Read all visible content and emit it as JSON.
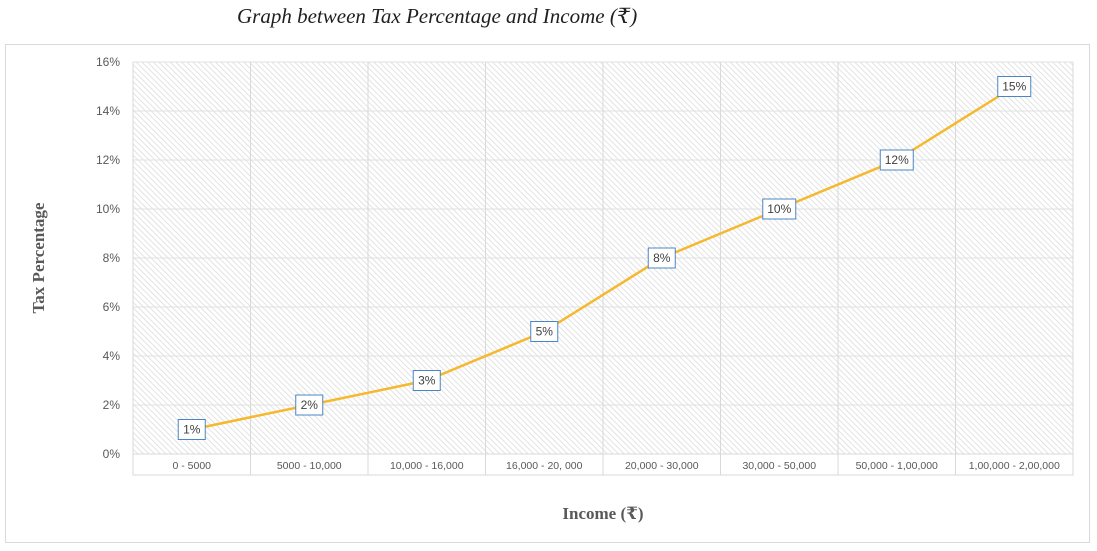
{
  "chart_data": {
    "type": "line",
    "title": "Graph between Tax Percentage and Income (₹)",
    "xlabel": "Income (₹)",
    "ylabel": "Tax Percentage",
    "categories": [
      "0 - 5000",
      "5000 - 10,000",
      "10,000 - 16,000",
      "16,000 - 20, 000",
      "20,000 - 30,000",
      "30,000 - 50,000",
      "50,000 - 1,00,000",
      "1,00,000 - 2,00,000"
    ],
    "values": [
      1,
      2,
      3,
      5,
      8,
      10,
      12,
      15
    ],
    "data_labels": [
      "1%",
      "2%",
      "3%",
      "5%",
      "8%",
      "10%",
      "12%",
      "15%"
    ],
    "yticks": [
      0,
      2,
      4,
      6,
      8,
      10,
      12,
      14,
      16
    ],
    "ytick_labels": [
      "0%",
      "2%",
      "4%",
      "6%",
      "8%",
      "10%",
      "12%",
      "14%",
      "16%"
    ],
    "ylim": [
      0,
      16
    ],
    "grid": true,
    "legend": "none",
    "colors": {
      "line": "#f5b82e",
      "label_border": "#4a86c5",
      "gridline": "#e0e0e0",
      "hatch": "#dcdcdc"
    }
  }
}
